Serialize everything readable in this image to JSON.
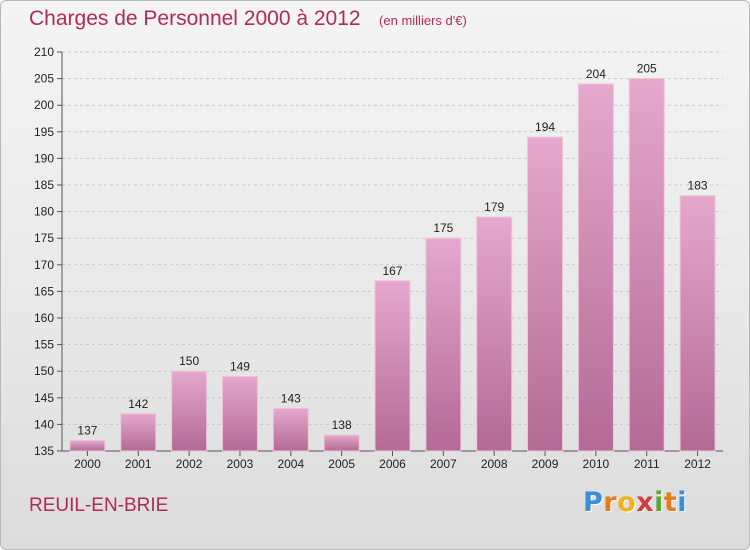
{
  "header": {
    "title": "Charges de Personnel 2000 à 2012",
    "subtitle": "(en milliers d'€)"
  },
  "footer": {
    "location": "REUIL-EN-BRIE",
    "logo_letters": [
      "P",
      "r",
      "o",
      "x",
      "i",
      "t",
      "i"
    ],
    "logo_colors": [
      "#3a8fd6",
      "#e87a1e",
      "#f0b020",
      "#d43a3a",
      "#5aa83a",
      "#e87a1e",
      "#3a8fd6"
    ]
  },
  "colors": {
    "bar_top": "#e6a8cd",
    "bar_bottom": "#b36a94",
    "bar_edge": "#efc4dc",
    "accent": "#b02a5a"
  },
  "chart_data": {
    "type": "bar",
    "categories": [
      "2000",
      "2001",
      "2002",
      "2003",
      "2004",
      "2005",
      "2006",
      "2007",
      "2008",
      "2009",
      "2010",
      "2011",
      "2012"
    ],
    "values": [
      137,
      142,
      150,
      149,
      143,
      138,
      167,
      175,
      179,
      194,
      204,
      205,
      183
    ],
    "ylim": [
      135,
      210
    ],
    "yticks": [
      135,
      140,
      145,
      150,
      155,
      160,
      165,
      170,
      175,
      180,
      185,
      190,
      195,
      200,
      205,
      210
    ],
    "grid": true
  }
}
